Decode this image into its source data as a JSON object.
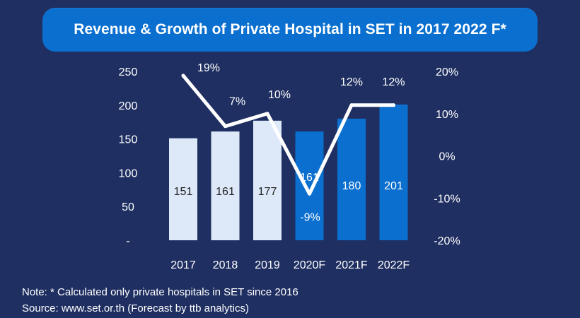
{
  "title": "Revenue & Growth of Private Hospital in SET in 2017 2022 F*",
  "footer": {
    "note": "Note: * Calculated only private hospitals in SET since 2016",
    "source": "Source: www.set.or.th (Forecast by ttb analytics)"
  },
  "colors": {
    "background": "#1f2f61",
    "title_box": "#0a6fcf",
    "bar_actual": "#dde9f8",
    "bar_forecast": "#0a6fcf",
    "line": "#ffffff",
    "text": "#ffffff",
    "bar_label_dark": "#1f1f1f"
  },
  "chart_data": {
    "type": "bar",
    "categories": [
      "2017",
      "2018",
      "2019",
      "2020F",
      "2021F",
      "2022F"
    ],
    "series": [
      {
        "name": "Revenue",
        "axis": "left",
        "values": [
          151,
          161,
          177,
          161,
          180,
          201
        ],
        "value_labels": [
          "151",
          "161",
          "177",
          "161",
          "180",
          "201"
        ],
        "forecast": [
          false,
          false,
          false,
          true,
          true,
          true
        ]
      },
      {
        "name": "Growth",
        "type": "line",
        "axis": "right",
        "values": [
          19,
          7,
          10,
          -9,
          12,
          12
        ],
        "value_labels": [
          "19%",
          "7%",
          "10%",
          "-9%",
          "12%",
          "12%"
        ]
      }
    ],
    "left_axis": {
      "ylim": [
        0,
        250
      ],
      "ticks": [
        250,
        200,
        150,
        100,
        50,
        0
      ],
      "tick_labels": [
        "250",
        "200",
        "150",
        "100",
        "50",
        "-"
      ]
    },
    "right_axis": {
      "ylim": [
        -20,
        20
      ],
      "ticks": [
        20,
        10,
        0,
        -10,
        -20
      ],
      "tick_labels": [
        "20%",
        "10%",
        "0%",
        "-10%",
        "-20%"
      ]
    }
  }
}
